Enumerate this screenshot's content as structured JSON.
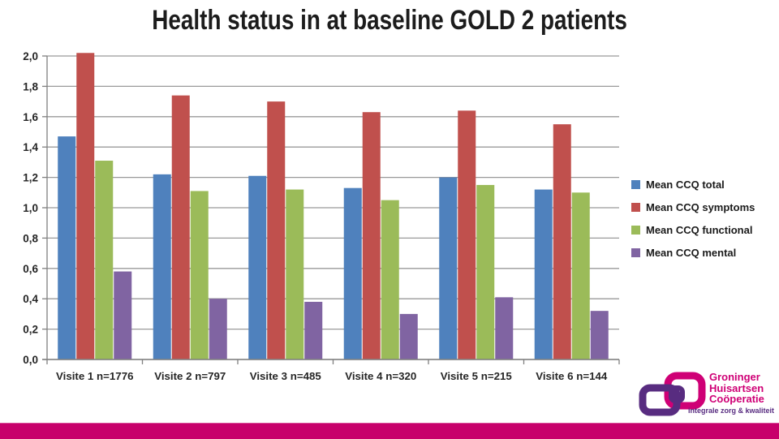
{
  "title": "Health status in at baseline GOLD 2 patients",
  "chart_data": {
    "type": "bar",
    "title": "Health status in at baseline GOLD 2 patients",
    "categories": [
      "Visite 1 n=1776",
      "Visite 2 n=797",
      "Visite 3 n=485",
      "Visite 4 n=320",
      "Visite 5 n=215",
      "Visite 6 n=144"
    ],
    "series": [
      {
        "key": "total",
        "name": "Mean CCQ total",
        "color": "#4f81bd",
        "values": [
          1.47,
          1.22,
          1.21,
          1.13,
          1.2,
          1.12
        ]
      },
      {
        "key": "symptoms",
        "name": "Mean CCQ symptoms",
        "color": "#c0504d",
        "values": [
          2.02,
          1.74,
          1.7,
          1.63,
          1.64,
          1.55
        ]
      },
      {
        "key": "functional",
        "name": "Mean CCQ functional",
        "color": "#9bbb59",
        "values": [
          1.31,
          1.11,
          1.12,
          1.05,
          1.15,
          1.1
        ]
      },
      {
        "key": "mental",
        "name": "Mean CCQ mental",
        "color": "#8064a2",
        "values": [
          0.58,
          0.4,
          0.38,
          0.3,
          0.41,
          0.32
        ]
      }
    ],
    "xlabel": "",
    "ylabel": "",
    "ylim": [
      0,
      2.0
    ],
    "yticks": [
      0,
      0.2,
      0.4,
      0.6,
      0.8,
      1.0,
      1.2,
      1.4,
      1.6,
      1.8,
      2.0
    ],
    "ytick_labels": [
      "0,0",
      "0,2",
      "0,4",
      "0,6",
      "0,8",
      "1,0",
      "1,2",
      "1,4",
      "1,6",
      "1,8",
      "2,0"
    ],
    "grid": true,
    "legend_position": "right",
    "grid_color": "#999999",
    "axis_color": "#808080",
    "tick_label_color": "#262626"
  },
  "logo": {
    "line1": "Groninger",
    "line2": "Huisartsen",
    "line3": "Coöperatie",
    "tagline": "integrale zorg & kwaliteit",
    "purple": "#582c80",
    "magenta": "#cf0076"
  },
  "accent_bar_color": "#c7006b"
}
